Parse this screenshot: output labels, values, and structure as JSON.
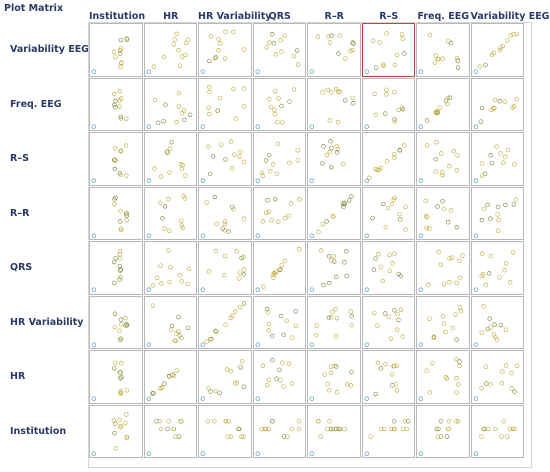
{
  "panel": {
    "title": "Plot Matrix"
  },
  "variables_columns": [
    "Institution",
    "HR",
    "HR Variability",
    "QRS",
    "R–R",
    "R–S",
    "Freq. EEG",
    "Variability EEG"
  ],
  "variables_rows": [
    "Variability EEG",
    "Freq. EEG",
    "R–S",
    "R–R",
    "QRS",
    "HR Variability",
    "HR",
    "Institution"
  ],
  "selected_cell": {
    "row": "Variability EEG",
    "column": "R–S"
  },
  "colors": {
    "marker_primary": "#b8a42a",
    "marker_secondary": "#6e7a2e",
    "marker_highlight": "#3d8fb0",
    "axis_label": "#2b3a66",
    "cell_border": "#b8b8b8",
    "selected_border": "#b34a3c"
  }
}
